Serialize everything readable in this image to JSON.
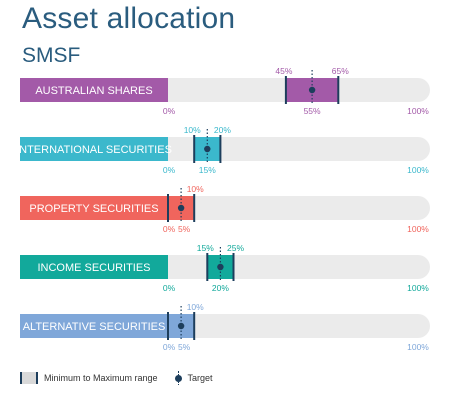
{
  "header": {
    "title": "Asset allocation",
    "subtitle": "SMSF"
  },
  "chart_data": {
    "type": "range",
    "xlim": [
      0,
      100
    ],
    "series": [
      {
        "name": "AUSTRALIAN SHARES",
        "min": 45,
        "max": 65,
        "target": 55,
        "min_label": "45%",
        "max_label": "65%",
        "target_label": "55%",
        "color": "#a35aa8"
      },
      {
        "name": "INTERNATIONAL SECURITIES",
        "min": 10,
        "max": 20,
        "target": 15,
        "min_label": "10%",
        "max_label": "20%",
        "target_label": "15%",
        "color": "#3bb8cc"
      },
      {
        "name": "PROPERTY SECURITIES",
        "min": 0,
        "max": 10,
        "target": 5,
        "min_label": "0%",
        "max_label": "10%",
        "target_label": "5%",
        "color": "#f0655d"
      },
      {
        "name": "INCOME SECURITIES",
        "min": 15,
        "max": 25,
        "target": 20,
        "min_label": "15%",
        "max_label": "25%",
        "target_label": "20%",
        "color": "#12a99b"
      },
      {
        "name": "ALTERNATIVE SECURITIES",
        "min": 0,
        "max": 10,
        "target": 5,
        "min_label": "0%",
        "max_label": "10%",
        "target_label": "5%",
        "color": "#7fa7d9"
      }
    ],
    "axis_labels": {
      "start": "0%",
      "end": "100%"
    }
  },
  "legend": {
    "range_label": "Minimum to Maximum range",
    "target_label": "Target"
  }
}
